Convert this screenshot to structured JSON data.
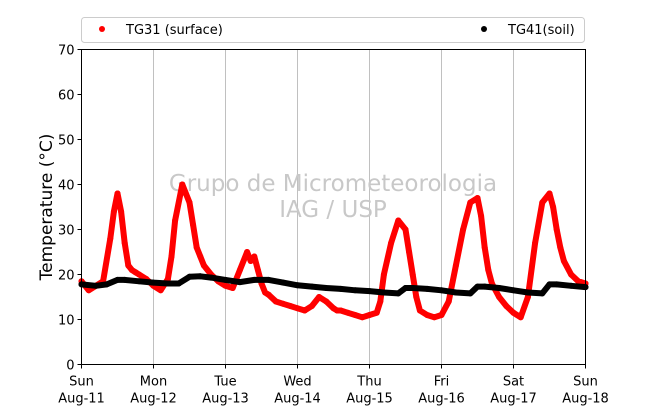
{
  "chart_data": {
    "type": "scatter",
    "ylabel": "Temperature (°C)",
    "ylim": [
      0,
      70
    ],
    "yticks": [
      0,
      10,
      20,
      30,
      40,
      50,
      60,
      70
    ],
    "xlim": [
      0,
      7
    ],
    "xticks": [
      {
        "day": 0,
        "top": "Sun",
        "bottom": "Aug-11"
      },
      {
        "day": 1,
        "top": "Mon",
        "bottom": "Aug-12"
      },
      {
        "day": 2,
        "top": "Tue",
        "bottom": "Aug-13"
      },
      {
        "day": 3,
        "top": "Wed",
        "bottom": "Aug-14"
      },
      {
        "day": 4,
        "top": "Thu",
        "bottom": "Aug-15"
      },
      {
        "day": 5,
        "top": "Fri",
        "bottom": "Aug-16"
      },
      {
        "day": 6,
        "top": "Sat",
        "bottom": "Aug-17"
      },
      {
        "day": 7,
        "top": "Sun",
        "bottom": "Aug-18"
      }
    ],
    "grid": "vertical",
    "legend_position": "top",
    "watermark": [
      "Grupo de Micrometeorologia",
      "IAG / USP"
    ],
    "series": [
      {
        "name": "TG31 (surface)",
        "color": "#ff0000",
        "x": [
          0.0,
          0.1,
          0.2,
          0.3,
          0.4,
          0.45,
          0.5,
          0.55,
          0.6,
          0.65,
          0.7,
          0.75,
          0.8,
          0.9,
          1.0,
          1.1,
          1.2,
          1.25,
          1.3,
          1.4,
          1.5,
          1.55,
          1.6,
          1.65,
          1.7,
          1.8,
          1.9,
          2.0,
          2.1,
          2.2,
          2.3,
          2.35,
          2.4,
          2.45,
          2.5,
          2.55,
          2.6,
          2.7,
          2.8,
          2.9,
          3.0,
          3.1,
          3.2,
          3.3,
          3.4,
          3.5,
          3.55,
          3.6,
          3.7,
          3.8,
          3.9,
          4.0,
          4.1,
          4.15,
          4.2,
          4.3,
          4.4,
          4.5,
          4.55,
          4.6,
          4.65,
          4.7,
          4.8,
          4.9,
          5.0,
          5.1,
          5.2,
          5.3,
          5.4,
          5.5,
          5.55,
          5.6,
          5.65,
          5.7,
          5.8,
          5.9,
          6.0,
          6.1,
          6.2,
          6.3,
          6.4,
          6.5,
          6.55,
          6.6,
          6.65,
          6.7,
          6.8,
          6.9,
          7.0
        ],
        "y": [
          18.5,
          16.5,
          17.5,
          18.5,
          28.0,
          34.0,
          38.0,
          34.0,
          27.0,
          22.0,
          21.0,
          20.5,
          20.0,
          19.0,
          17.5,
          16.5,
          19.0,
          24.0,
          32.0,
          40.0,
          36.0,
          31.0,
          26.0,
          24.0,
          22.0,
          20.0,
          18.5,
          17.5,
          17.0,
          21.0,
          25.0,
          23.0,
          24.0,
          21.0,
          18.0,
          16.0,
          15.5,
          14.0,
          13.5,
          13.0,
          12.5,
          12.0,
          13.0,
          15.0,
          14.0,
          12.5,
          12.0,
          12.0,
          11.5,
          11.0,
          10.5,
          11.0,
          11.5,
          14.0,
          20.0,
          27.0,
          32.0,
          30.0,
          25.0,
          20.0,
          15.0,
          12.0,
          11.0,
          10.5,
          11.0,
          14.0,
          22.0,
          30.0,
          36.0,
          37.0,
          33.0,
          26.0,
          21.0,
          18.0,
          15.0,
          13.0,
          11.5,
          10.5,
          15.0,
          27.0,
          36.0,
          38.0,
          35.0,
          30.0,
          26.0,
          23.0,
          20.0,
          18.5,
          18.0
        ]
      },
      {
        "name": "TG41(soil)",
        "color": "#000000",
        "x": [
          0.0,
          0.2,
          0.35,
          0.5,
          0.6,
          0.8,
          1.0,
          1.2,
          1.35,
          1.5,
          1.65,
          1.8,
          2.0,
          2.2,
          2.4,
          2.6,
          2.8,
          3.0,
          3.2,
          3.4,
          3.6,
          3.8,
          4.0,
          4.2,
          4.4,
          4.5,
          4.6,
          4.8,
          5.0,
          5.2,
          5.4,
          5.5,
          5.6,
          5.8,
          6.0,
          6.2,
          6.4,
          6.5,
          6.6,
          6.8,
          7.0
        ],
        "y": [
          17.8,
          17.5,
          17.8,
          18.8,
          18.8,
          18.5,
          18.2,
          18.0,
          18.0,
          19.5,
          19.6,
          19.3,
          18.8,
          18.3,
          18.8,
          18.8,
          18.2,
          17.6,
          17.3,
          17.0,
          16.8,
          16.5,
          16.3,
          16.0,
          15.8,
          17.0,
          17.0,
          16.8,
          16.5,
          16.0,
          15.8,
          17.3,
          17.3,
          17.0,
          16.5,
          16.0,
          15.8,
          17.8,
          17.8,
          17.5,
          17.2
        ]
      }
    ]
  }
}
